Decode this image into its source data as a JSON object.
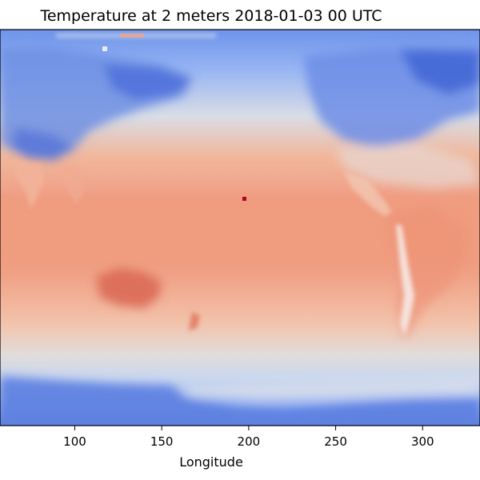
{
  "chart_data": {
    "type": "heatmap",
    "title": "Temperature at 2 meters 2018-01-03 00 UTC",
    "xlabel": "Longitude",
    "ylabel": "",
    "xlim": [
      57,
      333
    ],
    "xticks": [
      100,
      150,
      200,
      250,
      300
    ],
    "grid": false,
    "legend": "none",
    "colormap": "coolwarm",
    "colors": {
      "cold": "#3b5fd6",
      "cool": "#8fb2f2",
      "neutral": "#dcdfe6",
      "warm": "#f2a58a",
      "hot": "#e2725a",
      "outlier": "#b40426"
    }
  }
}
